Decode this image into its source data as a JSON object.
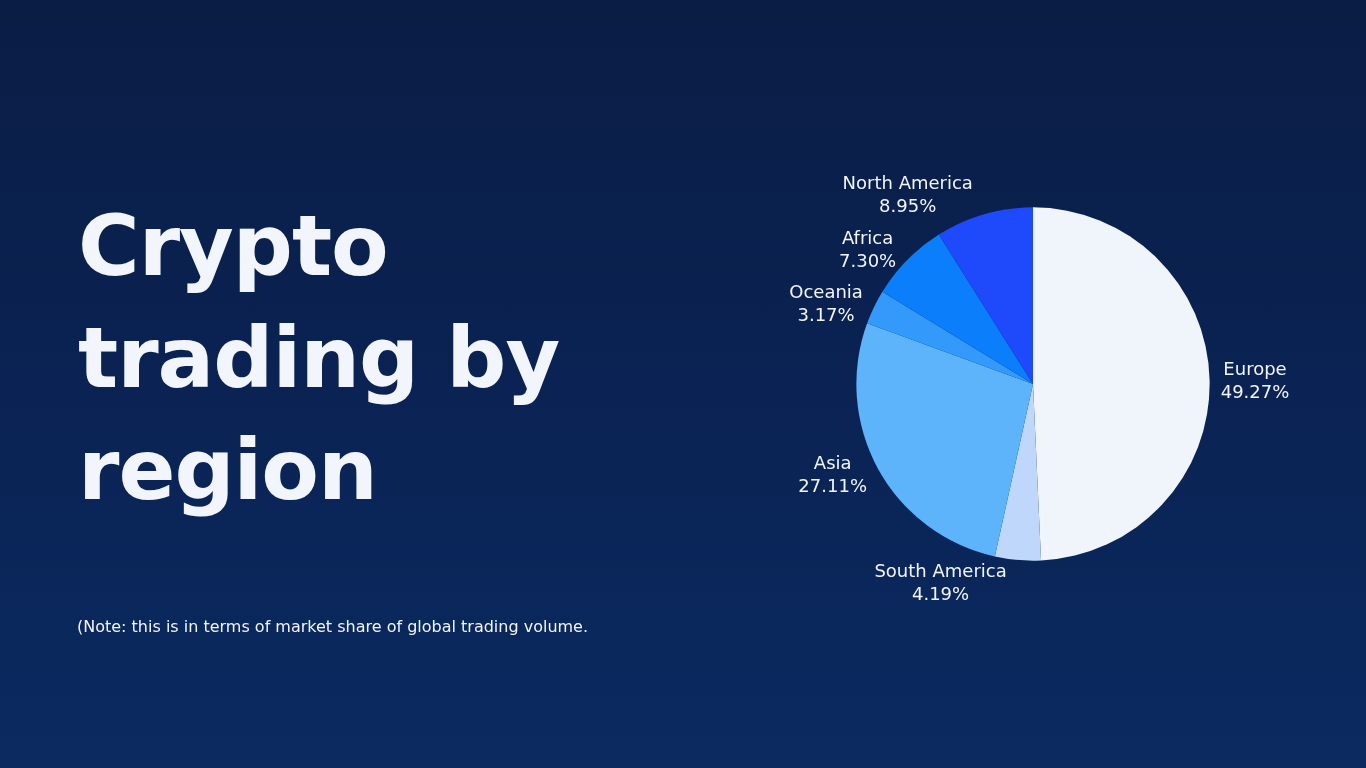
{
  "chart_data": {
    "type": "pie",
    "title": "Crypto trading by region",
    "categories": [
      "Europe",
      "South America",
      "Asia",
      "Oceania",
      "Africa",
      "North America"
    ],
    "values": [
      49.27,
      4.19,
      27.11,
      3.17,
      7.3,
      8.95
    ],
    "value_labels": [
      "49.27%",
      "4.19%",
      "27.11%",
      "3.17%",
      "7.30%",
      "8.95%"
    ],
    "colors": [
      "#f0f4fb",
      "#bfd7fb",
      "#5db4fb",
      "#3399fb",
      "#0a7efb",
      "#1f4afb"
    ],
    "annotations": [
      "(Note: this is in terms of market share of global trading volume."
    ]
  }
}
